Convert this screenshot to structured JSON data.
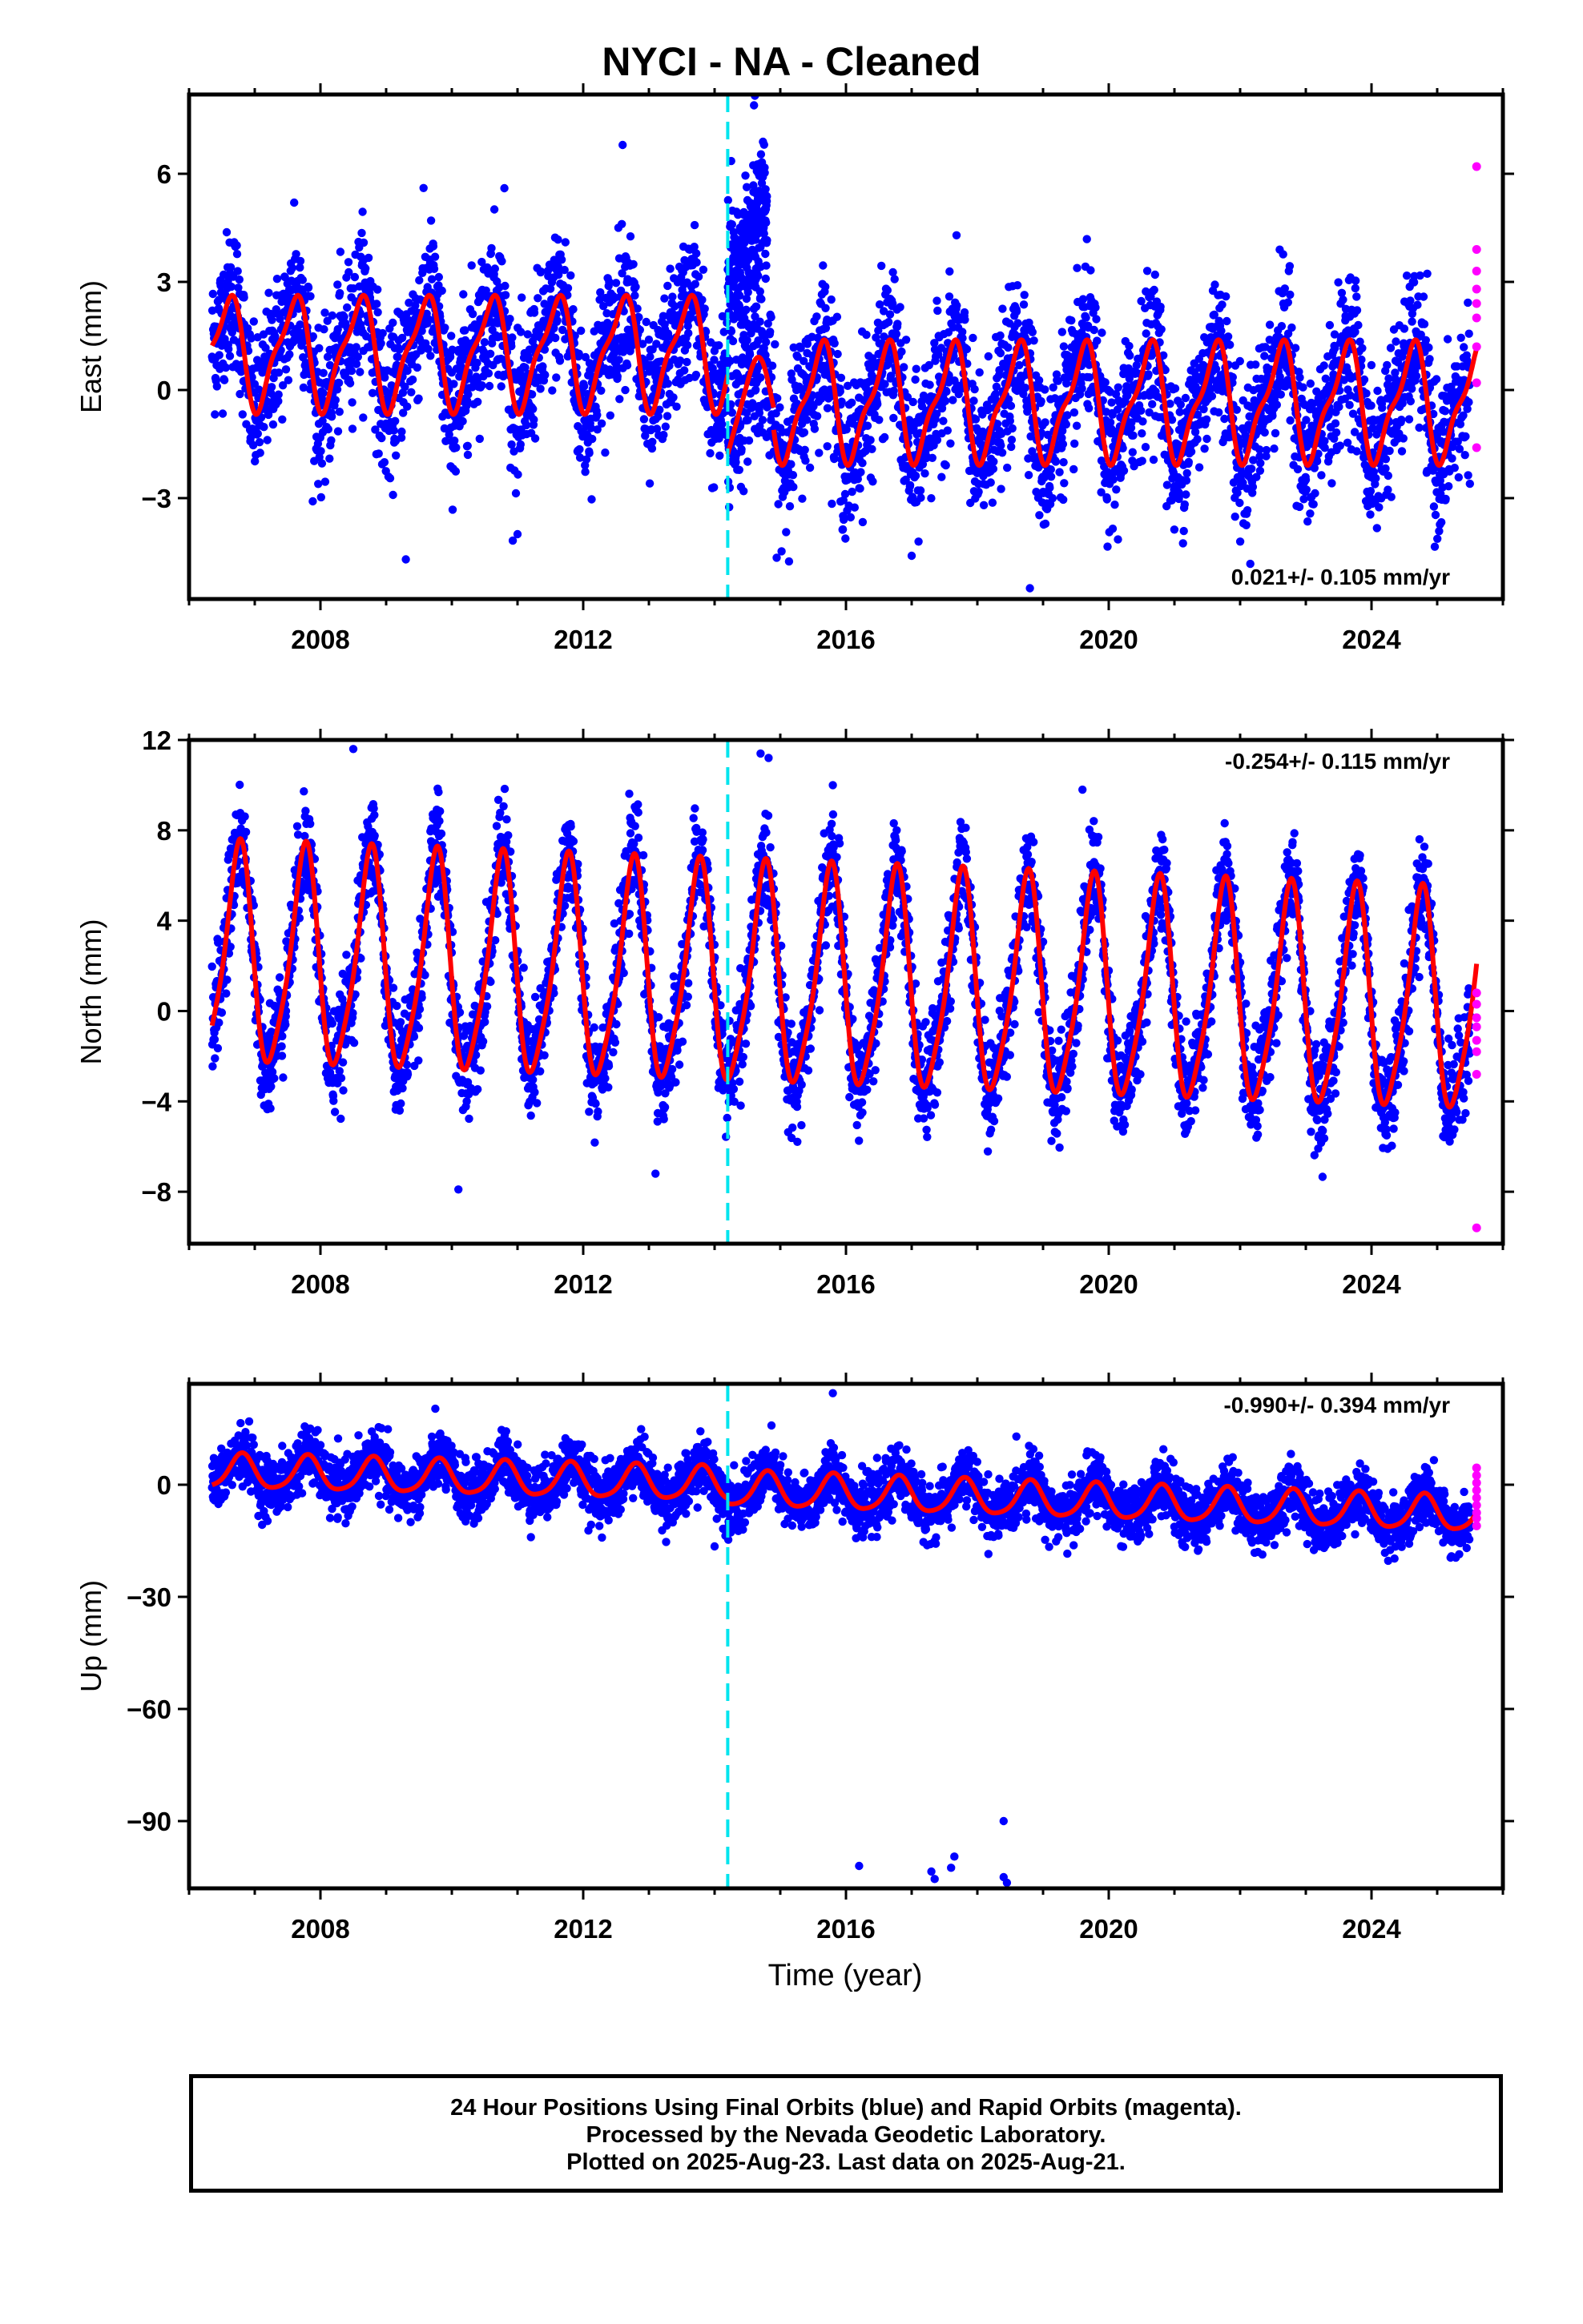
{
  "title": "NYCI  - NA - Cleaned",
  "xlabel": "Time (year)",
  "footer": {
    "line1": "24 Hour Positions Using Final Orbits (blue) and Rapid Orbits (magenta).",
    "line2": "Processed by the Nevada Geodetic Laboratory.",
    "line3": "Plotted on 2025-Aug-23. Last data on 2025-Aug-21."
  },
  "colors": {
    "final_orbits": "#0000ff",
    "rapid_orbits": "#ff00ff",
    "model": "#ff0000",
    "discontinuity": "#00e5ee"
  },
  "chart_data": [
    {
      "type": "scatter",
      "ylabel": "East (mm)",
      "rate": "0.021+/- 0.105 mm/yr",
      "rate_position": "bottom-right",
      "xlim": [
        2006.0,
        2026.0
      ],
      "ylim": [
        -5.8,
        8.2
      ],
      "xticks": [
        2008,
        2012,
        2016,
        2020,
        2024
      ],
      "xtick_labels": [
        "2008",
        "2012",
        "2016",
        "2020",
        "2024"
      ],
      "yticks": [
        -3,
        0,
        3,
        6
      ],
      "ytick_labels": [
        "−3",
        "0",
        "3",
        "6"
      ],
      "discontinuity": 2014.2,
      "series": [
        {
          "kind": "final_orbits",
          "x_start": 2006.35,
          "x_end": 2025.5,
          "scatter_std": 1.0,
          "outliers": [
            [
              2009.3,
              -4.7
            ],
            [
              2011.0,
              -4.0
            ],
            [
              2017.0,
              -4.6
            ],
            [
              2018.8,
              -5.5
            ],
            [
              2012.6,
              6.8
            ],
            [
              2014.6,
              7.9
            ],
            [
              2010.8,
              5.6
            ],
            [
              2007.6,
              5.2
            ]
          ]
        },
        {
          "kind": "rapid_orbits",
          "x": 2025.6,
          "values": [
            6.2,
            3.9,
            3.3,
            2.8,
            2.4,
            2.0,
            1.2,
            0.2,
            -1.6
          ]
        },
        {
          "kind": "model",
          "segments": [
            {
              "x_start": 2006.35,
              "x_end": 2014.2,
              "offset": 1.05,
              "trend": 0.0,
              "amp_annual": 1.45,
              "amp_semi": 0.45,
              "phase_annual": 0.33,
              "phase_semi": 0.1
            },
            {
              "x_start": 2014.2,
              "x_end": 2014.9,
              "offset": 0.0,
              "trend": 0.0,
              "amp_annual": 1.2,
              "amp_semi": 0.2,
              "phase_annual": 0.35,
              "phase_semi": 0.1,
              "postseismic_from": -1.0
            },
            {
              "x_start": 2014.9,
              "x_end": 2025.6,
              "offset": -0.35,
              "trend": 0.0,
              "amp_annual": 1.5,
              "amp_semi": 0.5,
              "phase_annual": 0.35,
              "phase_semi": 0.1
            }
          ]
        },
        {
          "kind": "transient",
          "x_start": 2014.2,
          "x_end": 2014.8,
          "from": 2.5,
          "to": 5.0,
          "std": 1.1
        }
      ]
    },
    {
      "type": "scatter",
      "ylabel": "North (mm)",
      "rate": "-0.254+/- 0.115 mm/yr",
      "rate_position": "top-right",
      "xlim": [
        2006.0,
        2026.0
      ],
      "ylim": [
        -10.3,
        12.0
      ],
      "xticks": [
        2008,
        2012,
        2016,
        2020,
        2024
      ],
      "xtick_labels": [
        "2008",
        "2012",
        "2016",
        "2020",
        "2024"
      ],
      "yticks": [
        -8,
        -4,
        0,
        4,
        8,
        12
      ],
      "ytick_labels": [
        "−8",
        "−4",
        "0",
        "4",
        "8",
        "12"
      ],
      "discontinuity": 2014.2,
      "series": [
        {
          "kind": "final_orbits",
          "x_start": 2006.35,
          "x_end": 2025.5,
          "scatter_std": 1.1,
          "outliers": [
            [
              2010.1,
              -7.9
            ],
            [
              2008.5,
              11.6
            ],
            [
              2014.7,
              11.4
            ],
            [
              2015.8,
              10.0
            ],
            [
              2019.6,
              9.8
            ],
            [
              2013.1,
              -7.2
            ]
          ]
        },
        {
          "kind": "rapid_orbits",
          "x": 2025.6,
          "values": [
            0.8,
            0.3,
            -0.3,
            -0.7,
            -1.3,
            -1.8,
            -2.8,
            -9.6
          ]
        },
        {
          "kind": "model",
          "segments": [
            {
              "x_start": 2006.35,
              "x_end": 2025.6,
              "offset": 2.3,
              "trend": -0.11,
              "amp_annual": 4.7,
              "amp_semi": 0.9,
              "phase_annual": 0.5,
              "phase_semi": 0.2
            }
          ]
        }
      ]
    },
    {
      "type": "scatter",
      "ylabel": "Up (mm)",
      "rate": "-0.990+/- 0.394 mm/yr",
      "rate_position": "top-right",
      "xlim": [
        2006.0,
        2026.0
      ],
      "ylim": [
        -108.0,
        27.0
      ],
      "xticks": [
        2008,
        2012,
        2016,
        2020,
        2024
      ],
      "xtick_labels": [
        "2008",
        "2012",
        "2016",
        "2020",
        "2024"
      ],
      "yticks": [
        -90,
        -60,
        -30,
        0
      ],
      "ytick_labels": [
        "−90",
        "−60",
        "−30",
        "0"
      ],
      "discontinuity": 2014.2,
      "series": [
        {
          "kind": "final_orbits",
          "x_start": 2006.35,
          "x_end": 2025.5,
          "scatter_std": 3.8,
          "outliers": [
            [
              2016.2,
              -102.0
            ],
            [
              2017.3,
              -103.5
            ],
            [
              2017.35,
              -105.5
            ],
            [
              2017.6,
              -102.5
            ],
            [
              2017.65,
              -99.5
            ],
            [
              2018.4,
              -90.0
            ],
            [
              2018.4,
              -105.0
            ],
            [
              2018.45,
              -106.5
            ],
            [
              2014.0,
              -16.5
            ],
            [
              2015.8,
              24.5
            ]
          ]
        },
        {
          "kind": "rapid_orbits",
          "x": 2025.6,
          "values": [
            4.5,
            2.5,
            0.5,
            -1.5,
            -3.5,
            -5.5,
            -7.5,
            -9.0,
            -11.0
          ]
        },
        {
          "kind": "model",
          "segments": [
            {
              "x_start": 2006.35,
              "x_end": 2014.2,
              "offset": 3.5,
              "trend": -0.45,
              "amp_annual": 4.5,
              "amp_semi": 0.8,
              "phase_annual": 0.55,
              "phase_semi": 0.2
            },
            {
              "x_start": 2014.2,
              "x_end": 2025.6,
              "offset": 3.5,
              "trend": -0.6,
              "amp_annual": 4.6,
              "amp_semi": 0.8,
              "phase_annual": 0.55,
              "phase_semi": 0.2
            }
          ]
        }
      ]
    }
  ]
}
